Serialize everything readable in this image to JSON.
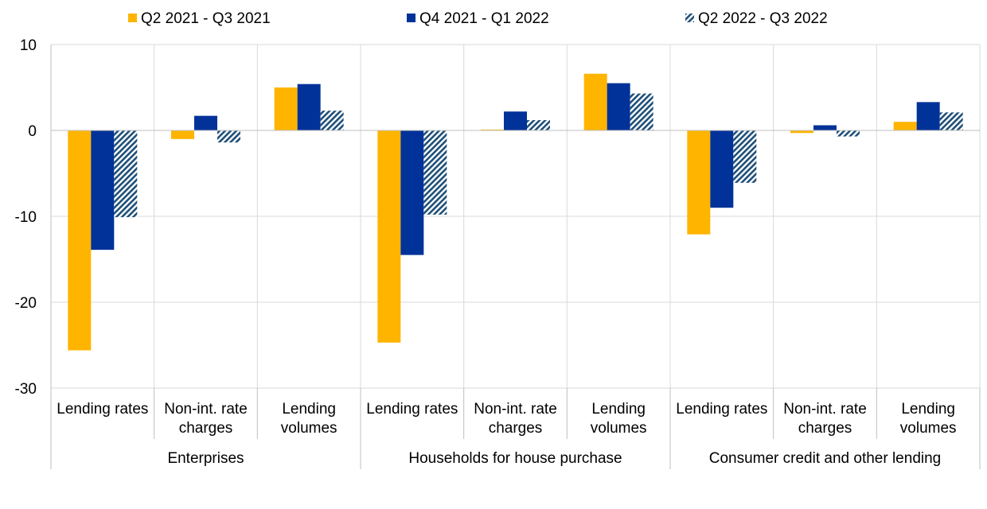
{
  "chart_data": {
    "type": "bar",
    "title": "",
    "ylim": [
      -30,
      10
    ],
    "yticks": [
      10,
      0,
      -10,
      -20,
      -30
    ],
    "grid": true,
    "legend_position": "top",
    "groups": [
      "Enterprises",
      "Households for house purchase",
      "Consumer credit and other lending"
    ],
    "categories": [
      [
        "Lending rates"
      ],
      [
        "Non-int. rate",
        "charges"
      ],
      [
        "Lending",
        "volumes"
      ],
      [
        "Lending rates"
      ],
      [
        "Non-int. rate",
        "charges"
      ],
      [
        "Lending",
        "volumes"
      ],
      [
        "Lending rates"
      ],
      [
        "Non-int. rate",
        "charges"
      ],
      [
        "Lending",
        "volumes"
      ]
    ],
    "series": [
      {
        "name": "Q2 2021 - Q3 2021",
        "color": "#FFB400",
        "pattern": "solid",
        "values": [
          -25.6,
          -1.0,
          5.0,
          -24.7,
          0.1,
          6.6,
          -12.1,
          -0.3,
          1.0
        ]
      },
      {
        "name": "Q4 2021 - Q1 2022",
        "color": "#003299",
        "pattern": "solid",
        "values": [
          -13.9,
          1.7,
          5.4,
          -14.5,
          2.2,
          5.5,
          -9.0,
          0.6,
          3.3
        ]
      },
      {
        "name": "Q2 2022 - Q3 2022",
        "color": "#1E4F78",
        "pattern": "diagonal-hatch",
        "values": [
          -10.1,
          -1.4,
          2.3,
          -9.8,
          1.2,
          4.3,
          -6.1,
          -0.7,
          2.1
        ]
      }
    ]
  }
}
